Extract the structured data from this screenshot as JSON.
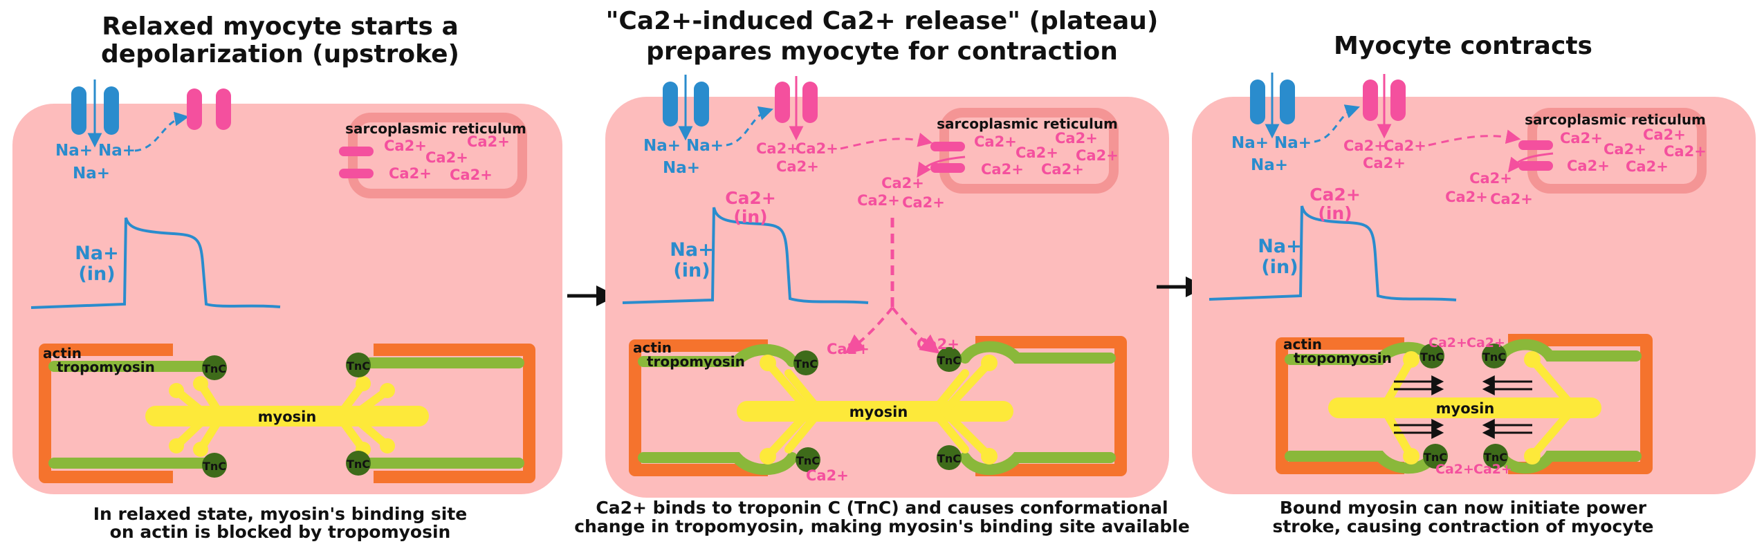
{
  "colors": {
    "sodium": "#2a8ccd",
    "calcium": "#f4509e",
    "cell": "#fdbcbc",
    "sr_wall": "#f49595",
    "actin": "#f5732d",
    "tropomyosin": "#8ab83a",
    "troponin": "#3e6b1a",
    "myosin": "#fde93a",
    "text": "#111111"
  },
  "panels": [
    {
      "title_line1": "Relaxed myocyte starts a",
      "title_line2": "depolarization (upstroke)",
      "caption_line1": "In relaxed state, myosin's binding site",
      "caption_line2": "on actin is blocked by tropomyosin",
      "sr_label": "sarcoplasmic reticulum",
      "graph_label_line1": "Na+",
      "graph_label_line2": "(in)",
      "na_ions": [
        "Na+",
        "Na+",
        "Na+"
      ],
      "sr_ions": [
        "Ca2+",
        "Ca2+",
        "Ca2+",
        "Ca2+",
        "Ca2+"
      ],
      "actin_label": "actin",
      "tropomyosin_label": "tropomyosin",
      "myosin_label": "myosin",
      "troponin_labels": [
        "TnC",
        "TnC",
        "TnC",
        "TnC"
      ]
    },
    {
      "title_line1": "\"Ca2+-induced Ca2+ release\" (plateau)",
      "title_line2": "prepares myocyte for contraction",
      "caption_line1": "Ca2+ binds to troponin C (TnC) and causes conformational",
      "caption_line2": "change in tropomyosin, making myosin's binding site available",
      "sr_label": "sarcoplasmic reticulum",
      "graph_label_line1": "Na+",
      "graph_label_line2": "(in)",
      "graph_label2_line1": "Ca2+",
      "graph_label2_line2": "(in)",
      "na_ions": [
        "Na+",
        "Na+",
        "Na+"
      ],
      "channel_ions": [
        "Ca2+",
        "Ca2+",
        "Ca2+"
      ],
      "sr_ions": [
        "Ca2+",
        "Ca2+",
        "Ca2+",
        "Ca2+",
        "Ca2+",
        "Ca2+"
      ],
      "released_ions": [
        "Ca2+",
        "Ca2+",
        "Ca2+"
      ],
      "bound_ions": [
        "Ca2+",
        "Ca2+",
        "Ca2+"
      ],
      "actin_label": "actin",
      "tropomyosin_label": "tropomyosin",
      "myosin_label": "myosin",
      "troponin_labels": [
        "TnC",
        "TnC",
        "TnC",
        "TnC"
      ]
    },
    {
      "title_line1": "Myocyte contracts",
      "caption_line1": "Bound myosin can now initiate power",
      "caption_line2": "stroke, causing contraction of myocyte",
      "sr_label": "sarcoplasmic reticulum",
      "graph_label_line1": "Na+",
      "graph_label_line2": "(in)",
      "graph_label2_line1": "Ca2+",
      "graph_label2_line2": "(in)",
      "na_ions": [
        "Na+",
        "Na+",
        "Na+"
      ],
      "channel_ions": [
        "Ca2+",
        "Ca2+",
        "Ca2+"
      ],
      "sr_ions": [
        "Ca2+",
        "Ca2+",
        "Ca2+",
        "Ca2+",
        "Ca2+",
        "Ca2+"
      ],
      "released_ions": [
        "Ca2+",
        "Ca2+",
        "Ca2+"
      ],
      "bound_ions": [
        "Ca2+",
        "Ca2+",
        "Ca2+",
        "Ca2+"
      ],
      "actin_label": "actin",
      "tropomyosin_label": "tropomyosin",
      "myosin_label": "myosin",
      "troponin_labels": [
        "TnC",
        "TnC",
        "TnC",
        "TnC"
      ]
    }
  ]
}
